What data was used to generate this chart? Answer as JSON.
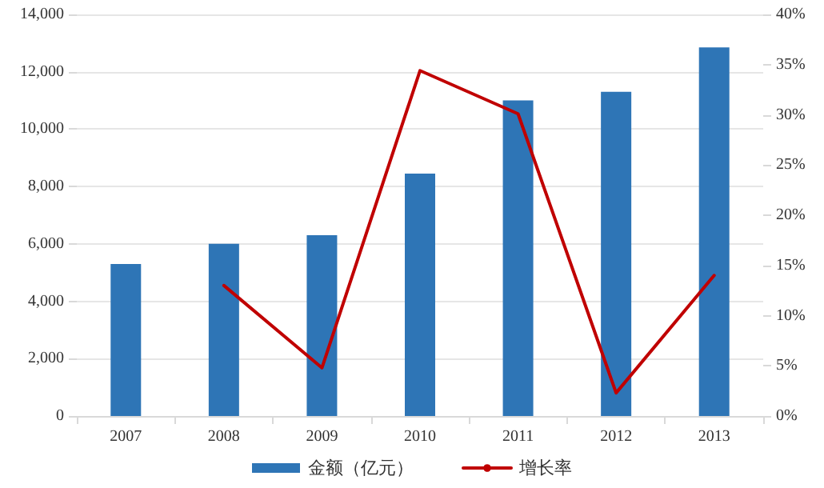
{
  "chart_data": {
    "type": "bar",
    "categories": [
      "2007",
      "2008",
      "2009",
      "2010",
      "2011",
      "2012",
      "2013"
    ],
    "series": [
      {
        "name": "金额（亿元）",
        "color": "#2e75b6",
        "values": [
          5300,
          6000,
          6300,
          8450,
          11000,
          11300,
          12850
        ]
      },
      {
        "name": "增长率",
        "type": "line",
        "axis": "y2",
        "color": "#c00000",
        "values": [
          null,
          13.0,
          4.8,
          34.4,
          30.1,
          2.3,
          14.0
        ]
      }
    ],
    "ylim": [
      0,
      14000
    ],
    "yticks": [
      {
        "value": 0,
        "label": "0"
      },
      {
        "value": 2000,
        "label": "2,000"
      },
      {
        "value": 4000,
        "label": "4,000"
      },
      {
        "value": 6000,
        "label": "6,000"
      },
      {
        "value": 8000,
        "label": "8,000"
      },
      {
        "value": 10000,
        "label": "10,000"
      },
      {
        "value": 12000,
        "label": "12,000"
      },
      {
        "value": 14000,
        "label": "14,000"
      }
    ],
    "y2lim": [
      0,
      40
    ],
    "y2ticks": [
      {
        "value": 0,
        "label": "0%"
      },
      {
        "value": 5,
        "label": "5%"
      },
      {
        "value": 10,
        "label": "10%"
      },
      {
        "value": 15,
        "label": "15%"
      },
      {
        "value": 20,
        "label": "20%"
      },
      {
        "value": 25,
        "label": "25%"
      },
      {
        "value": 30,
        "label": "30%"
      },
      {
        "value": 35,
        "label": "35%"
      },
      {
        "value": 40,
        "label": "40%"
      }
    ],
    "grid": "y",
    "legend": "bottom",
    "marker": "none",
    "line_style": "solid"
  }
}
